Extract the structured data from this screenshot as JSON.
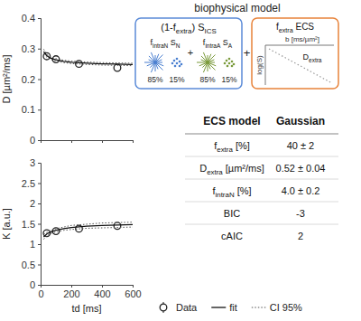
{
  "chart_data": [
    {
      "type": "line",
      "y_label": "D [µm²/ms]",
      "xlim": [
        0,
        600
      ],
      "xticks": [
        0,
        200,
        400,
        600
      ],
      "ylim": [
        0,
        0.4
      ],
      "yticks": [
        0,
        0.1,
        0.2,
        0.3,
        0.4
      ],
      "tick_labels": "y",
      "series": [
        {
          "name": "Data",
          "type": "scatter",
          "marker": "circle",
          "color": "#222222",
          "x": [
            40,
            100,
            250,
            500
          ],
          "values": [
            0.275,
            0.265,
            0.25,
            0.237
          ]
        },
        {
          "name": "fit",
          "type": "line",
          "line_style": "solid",
          "color": "#111111",
          "x": [
            20,
            40,
            60,
            80,
            100,
            150,
            200,
            300,
            400,
            500,
            600
          ],
          "values": [
            0.29,
            0.277,
            0.27,
            0.266,
            0.263,
            0.258,
            0.255,
            0.252,
            0.25,
            0.249,
            0.248
          ]
        },
        {
          "name": "CI 95%",
          "type": "band",
          "line_style": "dotted",
          "color": "#555555",
          "x": [
            20,
            40,
            60,
            80,
            100,
            150,
            200,
            300,
            400,
            500,
            600
          ],
          "lower": [
            0.282,
            0.272,
            0.266,
            0.262,
            0.259,
            0.254,
            0.251,
            0.248,
            0.246,
            0.245,
            0.244
          ],
          "upper": [
            0.298,
            0.282,
            0.274,
            0.27,
            0.267,
            0.262,
            0.259,
            0.256,
            0.254,
            0.253,
            0.252
          ]
        }
      ]
    },
    {
      "type": "line",
      "y_label": "K [a.u.]",
      "x_label": "td [ms]",
      "xlim": [
        0,
        600
      ],
      "xticks": [
        0,
        200,
        400,
        600
      ],
      "ylim": [
        0,
        3
      ],
      "yticks": [
        0,
        0.5,
        1,
        1.5,
        2,
        2.5,
        3
      ],
      "legend": "bottom",
      "series": [
        {
          "name": "Data",
          "type": "scatter",
          "marker": "circle",
          "color": "#222222",
          "x": [
            40,
            100,
            250,
            500
          ],
          "values": [
            1.27,
            1.32,
            1.38,
            1.45
          ]
        },
        {
          "name": "fit",
          "type": "line",
          "line_style": "solid",
          "color": "#111111",
          "x": [
            20,
            40,
            60,
            80,
            100,
            150,
            200,
            300,
            400,
            500,
            600
          ],
          "values": [
            1.18,
            1.25,
            1.29,
            1.32,
            1.34,
            1.38,
            1.41,
            1.44,
            1.46,
            1.47,
            1.48
          ]
        },
        {
          "name": "CI 95%",
          "type": "band",
          "line_style": "dotted",
          "color": "#555555",
          "x": [
            20,
            40,
            60,
            80,
            100,
            150,
            200,
            300,
            400,
            500,
            600
          ],
          "lower": [
            1.12,
            1.21,
            1.25,
            1.28,
            1.3,
            1.34,
            1.36,
            1.39,
            1.4,
            1.41,
            1.42
          ],
          "upper": [
            1.24,
            1.29,
            1.33,
            1.36,
            1.38,
            1.42,
            1.46,
            1.49,
            1.52,
            1.53,
            1.54
          ]
        }
      ]
    }
  ],
  "diagram": {
    "title": "biophysical model",
    "plus": "+",
    "ics": {
      "label": [
        {
          "t": "(1-f"
        },
        {
          "t": "extra",
          "sub": true
        },
        {
          "t": ") S"
        },
        {
          "t": "ICS",
          "sub": true
        }
      ],
      "operator": "+",
      "color": "#5b8bd8",
      "terms": [
        {
          "label": [
            {
              "t": "f"
            },
            {
              "t": "intraN",
              "sub": true
            },
            {
              "t": " S"
            },
            {
              "t": "N",
              "sub": true
            }
          ],
          "percents": [
            "85%",
            "15%"
          ],
          "color": "#4a7fd0"
        },
        {
          "label": [
            {
              "t": "f"
            },
            {
              "t": "intraA",
              "sub": true
            },
            {
              "t": " S"
            },
            {
              "t": "A",
              "sub": true
            }
          ],
          "percents": [
            "85%",
            "15%"
          ],
          "color": "#7a9a3a"
        }
      ]
    },
    "ecs": {
      "label": [
        {
          "t": "f"
        },
        {
          "t": "extra",
          "sub": true
        },
        {
          "t": " ECS"
        }
      ],
      "color": "#e8833a",
      "x_label": "b [ms/µm²]",
      "y_label": "log(S)",
      "slope_label": [
        {
          "t": "D"
        },
        {
          "t": "extra",
          "sub": true
        }
      ]
    }
  },
  "table": {
    "header": [
      "ECS model",
      "Gaussian"
    ],
    "rows": [
      [
        [
          {
            "t": "f"
          },
          {
            "t": "extra",
            "sub": true
          },
          {
            "t": " [%]"
          }
        ],
        "40 ± 2"
      ],
      [
        [
          {
            "t": "D"
          },
          {
            "t": "extra",
            "sub": true
          },
          {
            "t": " [µm²/ms]"
          }
        ],
        "0.52 ± 0.04"
      ],
      [
        [
          {
            "t": "f"
          },
          {
            "t": "intraN",
            "sub": true
          },
          {
            "t": " [%]"
          }
        ],
        "4.0 ± 0.2"
      ],
      [
        [
          {
            "t": "BIC"
          }
        ],
        "-3"
      ],
      [
        [
          {
            "t": "cAIC"
          }
        ],
        "2"
      ]
    ]
  }
}
